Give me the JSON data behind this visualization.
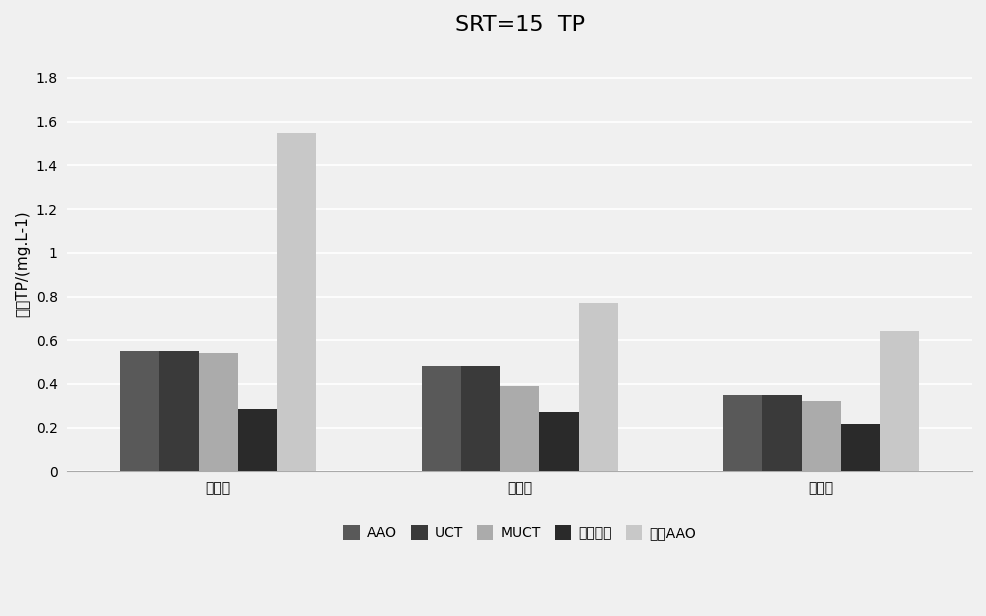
{
  "title": "SRT=15  TP",
  "ylabel": "出水TP/(mg.L-1)",
  "categories": [
    "低碳源",
    "中碳源",
    "高碳源"
  ],
  "series": [
    {
      "label": "AAO",
      "color": "#595959",
      "values": [
        0.55,
        0.48,
        0.35
      ]
    },
    {
      "label": "UCT",
      "color": "#3a3a3a",
      "values": [
        0.55,
        0.48,
        0.35
      ]
    },
    {
      "label": "MUCT",
      "color": "#ABABAB",
      "values": [
        0.54,
        0.39,
        0.32
      ]
    },
    {
      "label": "强化除磷",
      "color": "#2a2a2a",
      "values": [
        0.285,
        0.27,
        0.215
      ]
    },
    {
      "label": "倒置AAO",
      "color": "#C8C8C8",
      "values": [
        1.55,
        0.77,
        0.64
      ]
    }
  ],
  "ylim": [
    0,
    1.9
  ],
  "yticks": [
    0,
    0.2,
    0.4,
    0.6,
    0.8,
    1.0,
    1.2,
    1.4,
    1.6,
    1.8
  ],
  "bg_color": "#f0f0f0",
  "plot_bg_color": "#f0f0f0",
  "grid_color": "#ffffff",
  "bar_width": 0.13,
  "title_fontsize": 16,
  "label_fontsize": 11,
  "tick_fontsize": 10,
  "legend_fontsize": 10
}
